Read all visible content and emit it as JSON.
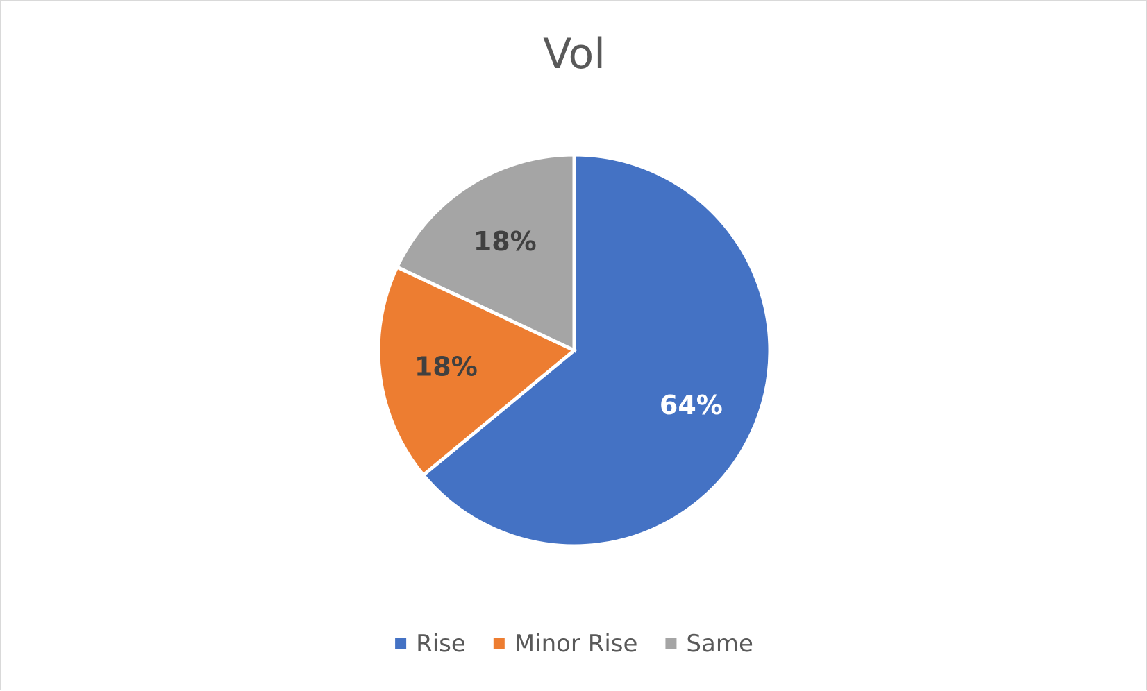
{
  "chart_data": {
    "type": "pie",
    "title": "Vol",
    "categories": [
      "Rise",
      "Minor Rise",
      "Same"
    ],
    "values": [
      64,
      18,
      18
    ],
    "labels": [
      "64%",
      "18%",
      "18%"
    ],
    "colors": [
      "#4472C4",
      "#ED7D31",
      "#A5A5A5"
    ],
    "label_colors": [
      "#ffffff",
      "#404040",
      "#404040"
    ],
    "start_angle_deg": 0,
    "direction": "clockwise",
    "legend": {
      "placement": "bottom",
      "entries": [
        "Rise",
        "Minor Rise",
        "Same"
      ]
    }
  }
}
